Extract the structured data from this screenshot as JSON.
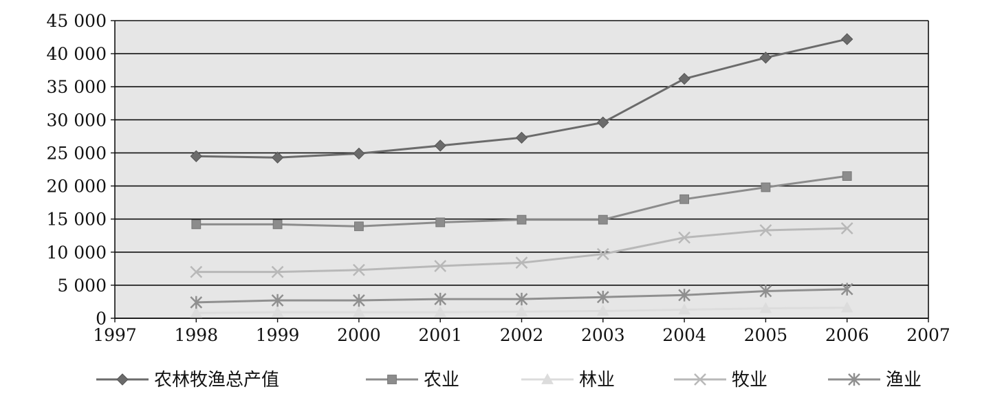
{
  "chart_data": {
    "type": "line",
    "title": "",
    "xlabel": "",
    "ylabel": "",
    "x": [
      1998,
      1999,
      2000,
      2001,
      2002,
      2003,
      2004,
      2005,
      2006
    ],
    "xlim": [
      1997,
      2007
    ],
    "x_ticks": [
      "1997",
      "1998",
      "1999",
      "2000",
      "2001",
      "2002",
      "2003",
      "2004",
      "2005",
      "2006",
      "2007"
    ],
    "ylim": [
      0,
      45000
    ],
    "y_ticks": [
      "0",
      "5 000",
      "10 000",
      "15 000",
      "20 000",
      "25 000",
      "30 000",
      "35 000",
      "40 000",
      "45 000"
    ],
    "grid": "horizontal",
    "plot_background": "#e6e6e6",
    "legend_position": "bottom",
    "series": [
      {
        "name": "农林牧渔总产值",
        "marker": "diamond",
        "color": "#6b6b6b",
        "values": [
          24500,
          24300,
          24900,
          26100,
          27300,
          29600,
          36200,
          39400,
          42200
        ]
      },
      {
        "name": "农业",
        "marker": "square",
        "color": "#8c8c8c",
        "values": [
          14200,
          14200,
          13900,
          14500,
          14900,
          14900,
          18000,
          19800,
          21500
        ]
      },
      {
        "name": "林业",
        "marker": "triangle",
        "color": "#dcdcdc",
        "values": [
          800,
          900,
          900,
          900,
          1000,
          1100,
          1300,
          1500,
          1600
        ]
      },
      {
        "name": "牧业",
        "marker": "x",
        "color": "#b8b8b8",
        "values": [
          7000,
          7000,
          7300,
          7900,
          8400,
          9700,
          12200,
          13300,
          13600
        ]
      },
      {
        "name": "渔业",
        "marker": "asterisk",
        "color": "#8f8f8f",
        "values": [
          2400,
          2700,
          2700,
          2900,
          2900,
          3200,
          3500,
          4100,
          4400
        ]
      }
    ]
  }
}
